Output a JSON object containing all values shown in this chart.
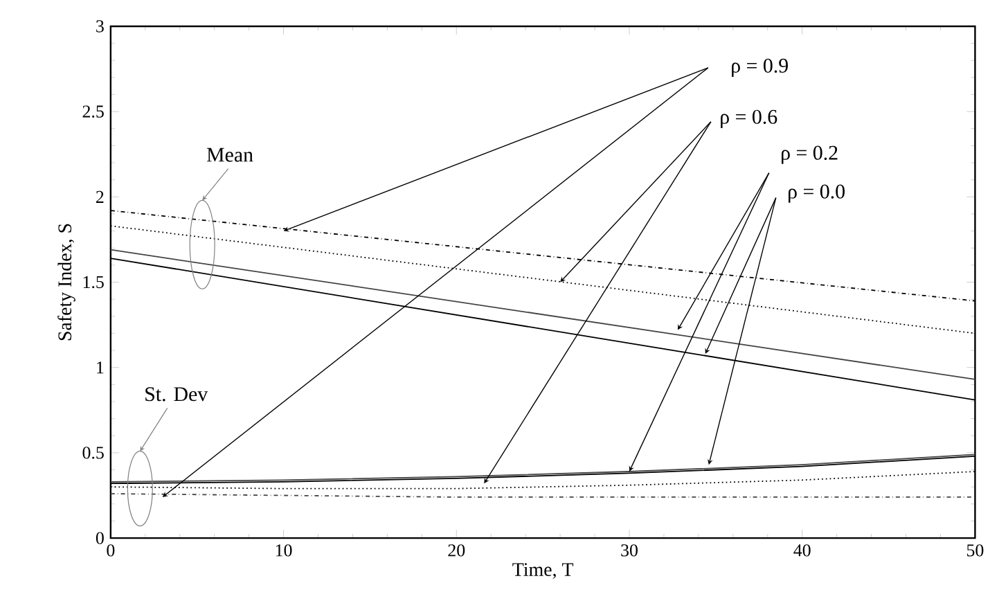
{
  "chart_data": {
    "type": "line",
    "xlabel": "Time, T",
    "ylabel": "Safety Index, S",
    "xlim": [
      0,
      50
    ],
    "ylim": [
      0,
      3
    ],
    "xticks": [
      0,
      10,
      20,
      30,
      40,
      50
    ],
    "yticks": [
      0,
      0.5,
      1,
      1.5,
      2,
      2.5,
      3
    ],
    "grid": false,
    "legend": false,
    "marker": "none",
    "annotations": [
      {
        "text": "ρ = 0.9",
        "x": 10,
        "y": 1.8
      },
      {
        "text": "ρ = 0.6",
        "x": 26,
        "y": 1.5
      },
      {
        "text": "ρ = 0.2",
        "x": 32.8,
        "y": 1.22
      },
      {
        "text": "ρ = 0.0",
        "x": 34.4,
        "y": 1.08
      },
      "Mean",
      "St. Dev"
    ],
    "series": [
      {
        "color": "#000000",
        "line_style": "dashdot",
        "x": [
          0,
          50
        ],
        "values": [
          1.92,
          1.39
        ]
      },
      {
        "color": "#000000",
        "line_style": "dotted",
        "x": [
          0,
          50
        ],
        "values": [
          1.83,
          1.2
        ]
      },
      {
        "color": "#444444",
        "line_style": "solid",
        "x": [
          0,
          50
        ],
        "values": [
          1.69,
          0.93
        ]
      },
      {
        "color": "#000000",
        "line_style": "solid",
        "x": [
          0,
          50
        ],
        "values": [
          1.64,
          0.81
        ]
      },
      {
        "color": "#444444",
        "line_style": "dashdot",
        "x": [
          0,
          10,
          20,
          30,
          40,
          50
        ],
        "values": [
          0.26,
          0.25,
          0.24,
          0.24,
          0.24,
          0.24
        ]
      },
      {
        "color": "#000000",
        "line_style": "dotted",
        "x": [
          0,
          10,
          20,
          30,
          40,
          50
        ],
        "values": [
          0.3,
          0.29,
          0.29,
          0.31,
          0.34,
          0.39
        ]
      },
      {
        "color": "#444444",
        "line_style": "solid",
        "x": [
          0,
          10,
          20,
          30,
          40,
          50
        ],
        "values": [
          0.33,
          0.34,
          0.36,
          0.39,
          0.43,
          0.49
        ]
      },
      {
        "color": "#000000",
        "line_style": "solid",
        "x": [
          0,
          10,
          20,
          30,
          40,
          50
        ],
        "values": [
          0.32,
          0.33,
          0.35,
          0.38,
          0.42,
          0.48
        ]
      }
    ]
  }
}
